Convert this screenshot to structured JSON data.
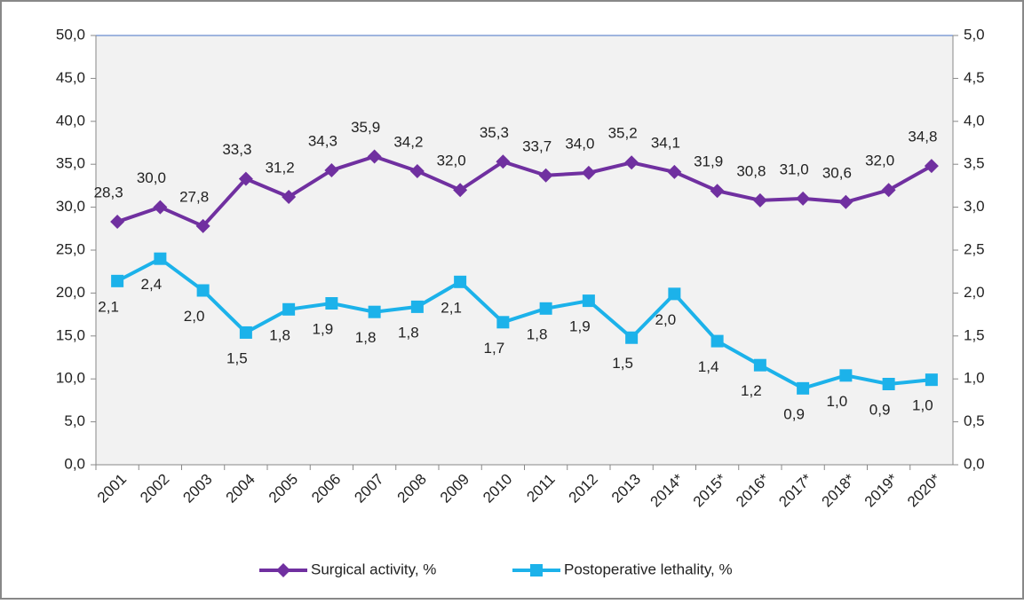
{
  "chart_data": {
    "type": "line",
    "categories": [
      "2001",
      "2002",
      "2003",
      "2004",
      "2005",
      "2006",
      "2007",
      "2008",
      "2009",
      "2010",
      "2011",
      "2012",
      "2013",
      "2014*",
      "2015*",
      "2016*",
      "2017*",
      "2018*",
      "2019*",
      "2020*"
    ],
    "series": [
      {
        "name": "Surgical activity, %",
        "color": "#7030a0",
        "marker": "diamond",
        "values": [
          28.3,
          30.0,
          27.8,
          33.3,
          31.2,
          34.3,
          35.9,
          34.2,
          32.0,
          35.3,
          33.7,
          34.0,
          35.2,
          34.1,
          31.9,
          30.8,
          31.0,
          30.6,
          32.0,
          34.8
        ],
        "value_labels": [
          "28,3",
          "30,0",
          "27,8",
          "33,3",
          "31,2",
          "34,3",
          "35,9",
          "34,2",
          "32,0",
          "35,3",
          "33,7",
          "34,0",
          "35,2",
          "34,1",
          "31,9",
          "30,8",
          "31,0",
          "30,6",
          "32,0",
          "34,8"
        ]
      },
      {
        "name": "Postoperative lethality, %",
        "color": "#1cb2ea",
        "marker": "square",
        "axis": "y2",
        "values": [
          2.14,
          2.4,
          2.03,
          1.54,
          1.81,
          1.88,
          1.78,
          1.84,
          2.13,
          1.66,
          1.82,
          1.91,
          1.48,
          1.99,
          1.44,
          1.16,
          0.89,
          1.04,
          0.94,
          0.99
        ],
        "value_labels": [
          "2,1",
          "2,4",
          "2,0",
          "1,5",
          "1,8",
          "1,9",
          "1,8",
          "1,8",
          "2,1",
          "1,7",
          "1,8",
          "1,9",
          "1,5",
          "2,0",
          "1,4",
          "1,2",
          "0,9",
          "1,0",
          "0,9",
          "1,0"
        ]
      }
    ],
    "ylim": [
      0,
      50
    ],
    "yticks": [
      {
        "value": 0,
        "label": "0,0"
      },
      {
        "value": 5,
        "label": "5,0"
      },
      {
        "value": 10,
        "label": "10,0"
      },
      {
        "value": 15,
        "label": "15,0"
      },
      {
        "value": 20,
        "label": "20,0"
      },
      {
        "value": 25,
        "label": "25,0"
      },
      {
        "value": 30,
        "label": "30,0"
      },
      {
        "value": 35,
        "label": "35,0"
      },
      {
        "value": 40,
        "label": "40,0"
      },
      {
        "value": 45,
        "label": "45,0"
      },
      {
        "value": 50,
        "label": "50,0"
      }
    ],
    "y2lim": [
      0,
      5
    ],
    "y2ticks": [
      {
        "value": 0,
        "label": "0,0"
      },
      {
        "value": 0.5,
        "label": "0,5"
      },
      {
        "value": 1,
        "label": "1,0"
      },
      {
        "value": 1.5,
        "label": "1,5"
      },
      {
        "value": 2,
        "label": "2,0"
      },
      {
        "value": 2.5,
        "label": "2,5"
      },
      {
        "value": 3,
        "label": "3,0"
      },
      {
        "value": 3.5,
        "label": "3,5"
      },
      {
        "value": 4,
        "label": "4,0"
      },
      {
        "value": 4.5,
        "label": "4,5"
      },
      {
        "value": 5,
        "label": "5,0"
      }
    ],
    "legend": "bottom"
  }
}
